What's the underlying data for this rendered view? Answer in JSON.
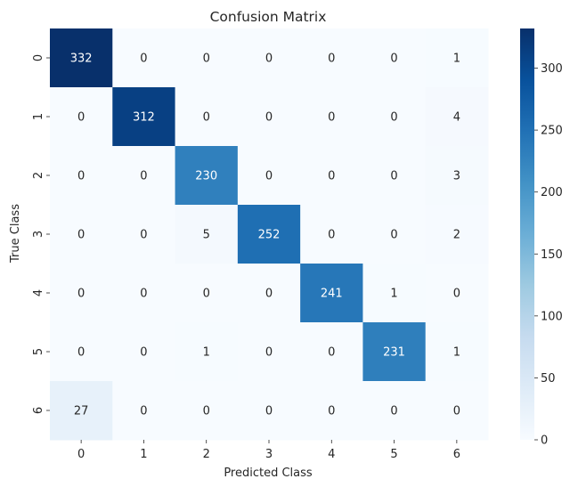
{
  "chart_data": {
    "type": "heatmap",
    "title": "Confusion Matrix",
    "xlabel": "Predicted Class",
    "ylabel": "True Class",
    "x_categories": [
      "0",
      "1",
      "2",
      "3",
      "4",
      "5",
      "6"
    ],
    "y_categories": [
      "0",
      "1",
      "2",
      "3",
      "4",
      "5",
      "6"
    ],
    "values": [
      [
        332,
        0,
        0,
        0,
        0,
        0,
        1
      ],
      [
        0,
        312,
        0,
        0,
        0,
        0,
        4
      ],
      [
        0,
        0,
        230,
        0,
        0,
        0,
        3
      ],
      [
        0,
        0,
        5,
        252,
        0,
        0,
        2
      ],
      [
        0,
        0,
        0,
        0,
        241,
        1,
        0
      ],
      [
        0,
        0,
        1,
        0,
        0,
        231,
        1
      ],
      [
        27,
        0,
        0,
        0,
        0,
        0,
        0
      ]
    ],
    "colormap": "Blues",
    "value_range": [
      0,
      332
    ],
    "colorbar": {
      "ticks": [
        0,
        50,
        100,
        150,
        200,
        250,
        300
      ]
    },
    "legend_position": "right"
  }
}
